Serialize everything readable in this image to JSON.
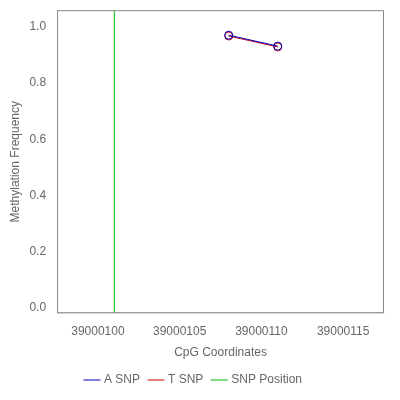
{
  "chart_data": {
    "type": "line",
    "xlabel": "CpG Coordinates",
    "ylabel": "Methylation Frequency",
    "series": [
      {
        "name": "A SNP",
        "color": "#0000bb",
        "marker": "circle",
        "x": [
          39000108,
          39000111
        ],
        "values": [
          0.971,
          0.932
        ]
      },
      {
        "name": "T SNP",
        "color": "#cc0000",
        "marker": "circle",
        "x": [
          39000108,
          39000111
        ],
        "values": [
          0.968,
          0.929
        ]
      },
      {
        "name": "SNP Position",
        "type": "vline",
        "color": "#00bb00",
        "marker": "none",
        "x": [
          39000101
        ]
      }
    ],
    "xlim": [
      39000097.5,
      39000117.5
    ],
    "ylim": [
      -0.02,
      1.06
    ],
    "xticks": [
      39000100,
      39000105,
      39000110,
      39000115
    ],
    "yticks": [
      {
        "value": 0,
        "label": "0.0"
      },
      0.2,
      0.4,
      0.6,
      0.8,
      {
        "value": 1,
        "label": "1.0"
      }
    ],
    "grid": false,
    "legend": "bottom"
  }
}
